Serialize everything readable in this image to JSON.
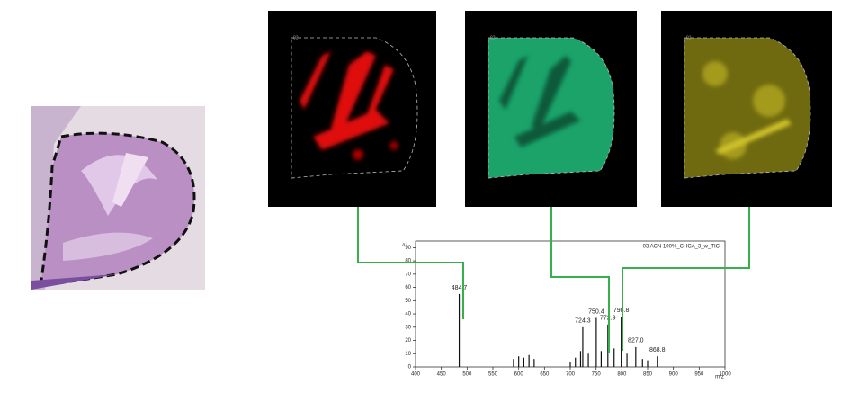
{
  "panels": [
    "03",
    "03",
    "03"
  ],
  "chart_data": {
    "type": "stem",
    "legend": "03 ACN 100%_CHCA_3_w_TIC",
    "x_label": "m/z",
    "y_label": "a.i.",
    "color": "#111111",
    "x": [
      484.7,
      590,
      600,
      610,
      620,
      630,
      700,
      710,
      720,
      724.3,
      735,
      750.4,
      760,
      772.9,
      785,
      798.8,
      810,
      827.0,
      840,
      850,
      868.8
    ],
    "values": [
      55,
      6,
      8,
      7,
      9,
      6,
      4,
      7,
      12,
      30,
      10,
      37,
      12,
      32,
      14,
      38,
      10,
      15,
      6,
      5,
      8
    ],
    "annotations": [
      {
        "text": "484.7",
        "x": 484.7,
        "y": 55
      },
      {
        "text": "724.3",
        "x": 724.3,
        "y": 30
      },
      {
        "text": "750.4",
        "x": 750.4,
        "y": 37
      },
      {
        "text": "772.9",
        "x": 772.9,
        "y": 32
      },
      {
        "text": "798.8",
        "x": 798.8,
        "y": 38
      },
      {
        "text": "827.0",
        "x": 827.0,
        "y": 15
      },
      {
        "text": "868.8",
        "x": 868.8,
        "y": 8
      }
    ],
    "xlim": [
      400,
      1000
    ],
    "xticks": [
      400,
      450,
      500,
      550,
      600,
      650,
      700,
      750,
      800,
      850,
      900,
      950,
      1000
    ],
    "ylim": [
      0,
      95
    ],
    "yticks": [
      0,
      10,
      20,
      30,
      40,
      50,
      60,
      70,
      80,
      90
    ]
  }
}
